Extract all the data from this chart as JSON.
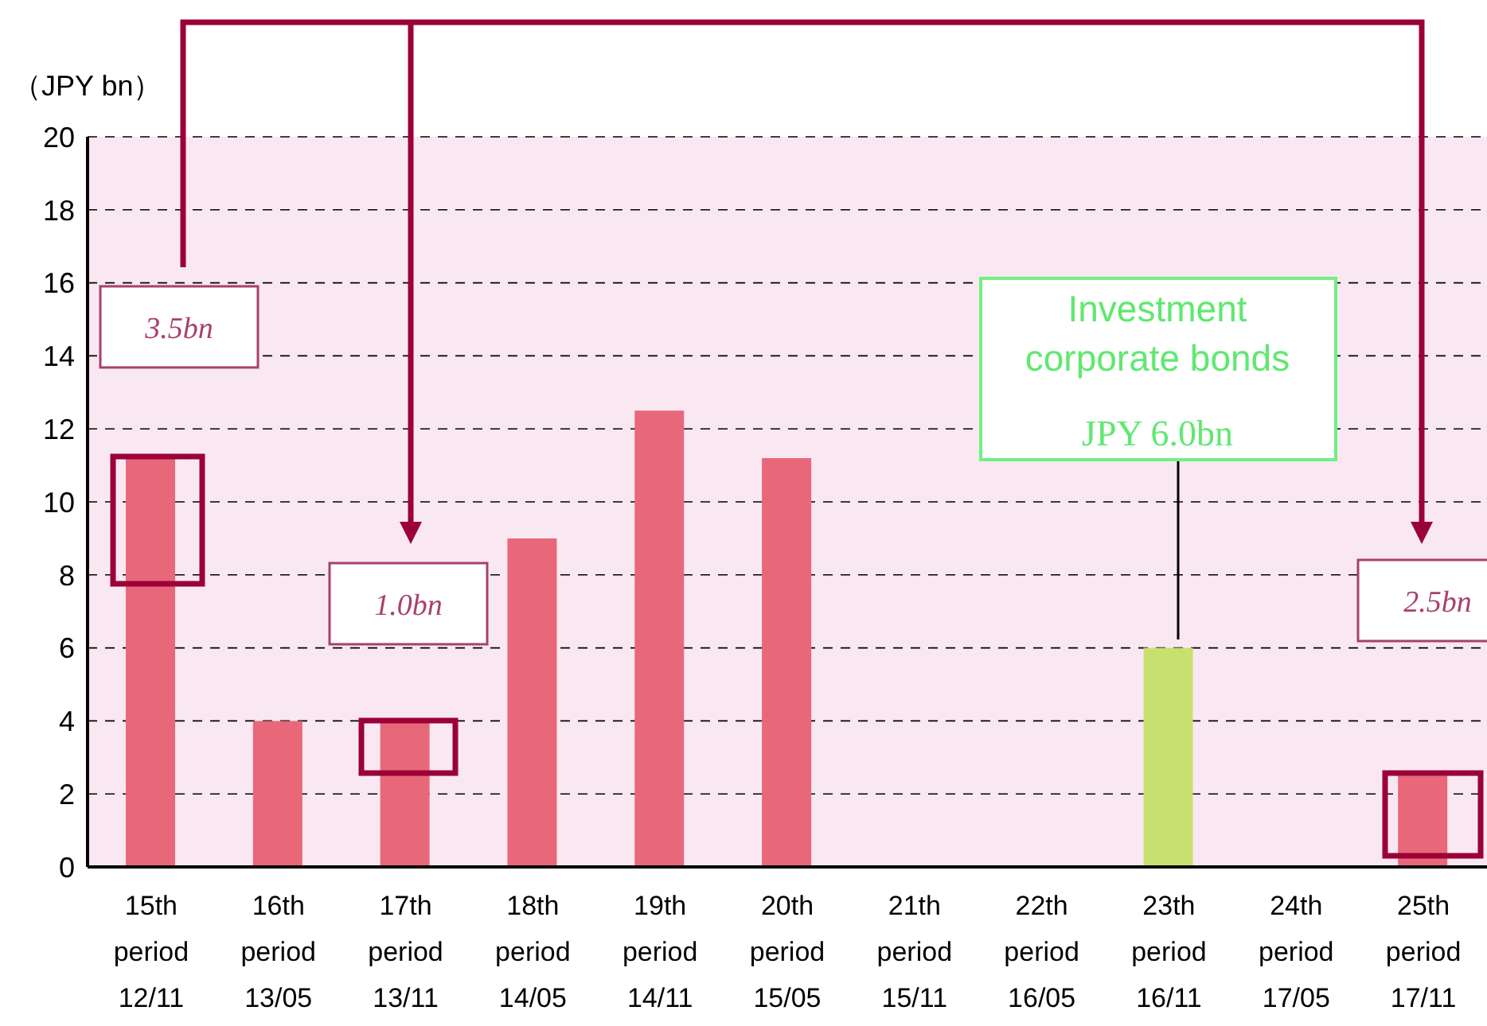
{
  "chart_data": {
    "type": "bar",
    "ylabel": "（JPY bn）",
    "categories": [
      "15th period 12/11",
      "16th period 13/05",
      "17th period 13/11",
      "18th period 14/05",
      "19th period 14/11",
      "20th period 15/05",
      "21th period 15/11",
      "22th period 16/05",
      "23th period 16/11",
      "24th period 17/05",
      "25th period 17/11"
    ],
    "values": [
      11.2,
      4.0,
      4.0,
      9.0,
      12.5,
      11.2,
      0,
      0,
      6.0,
      0,
      2.5
    ],
    "colors": [
      "#e8687a",
      "#e8687a",
      "#e8687a",
      "#e8687a",
      "#e8687a",
      "#e8687a",
      "#e8687a",
      "#e8687a",
      "#c8e070",
      "#e8687a",
      "#e8687a"
    ],
    "ylim": [
      0,
      20
    ],
    "yticks": [
      0,
      2,
      4,
      6,
      8,
      10,
      12,
      14,
      16,
      18,
      20
    ],
    "grid": "y",
    "annotations": [
      "3.5bn",
      "1.0bn",
      "2.5bn",
      "Investment corporate bonds",
      "JPY 6.0bn"
    ]
  }
}
